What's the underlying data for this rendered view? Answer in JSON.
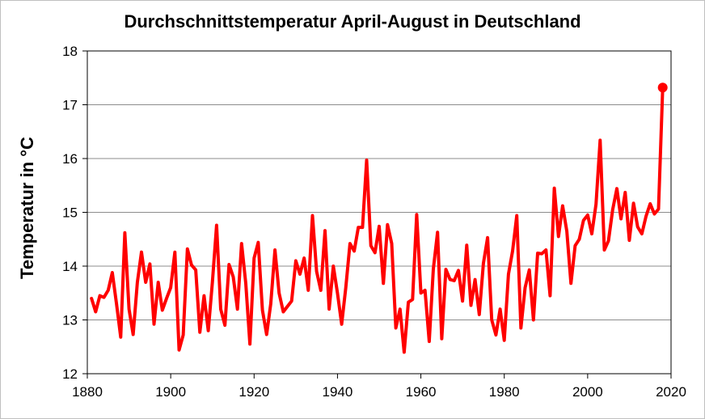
{
  "chart_data": {
    "type": "line",
    "title": "Durchschnittstemperatur April-August in Deutschland",
    "xlabel": "",
    "ylabel": "Temperatur in °C",
    "xlim": [
      1880,
      2020
    ],
    "ylim": [
      12,
      18
    ],
    "x_ticks": [
      "1880",
      "1900",
      "1920",
      "1940",
      "1960",
      "1980",
      "2000",
      "2020"
    ],
    "y_ticks": [
      "12",
      "13",
      "14",
      "15",
      "16",
      "17",
      "18"
    ],
    "grid": "horizontal",
    "legend": "none",
    "line_color": "#ff0000",
    "marker": "last point highlighted",
    "series": [
      {
        "x": [
          1881,
          1882,
          1883,
          1884,
          1885,
          1886,
          1887,
          1888,
          1889,
          1890,
          1891,
          1892,
          1893,
          1894,
          1895,
          1896,
          1897,
          1898,
          1899,
          1900,
          1901,
          1902,
          1903,
          1904,
          1905,
          1906,
          1907,
          1908,
          1909,
          1910,
          1911,
          1912,
          1913,
          1914,
          1915,
          1916,
          1917,
          1918,
          1919,
          1920,
          1921,
          1922,
          1923,
          1924,
          1925,
          1926,
          1927,
          1928,
          1929,
          1930,
          1931,
          1932,
          1933,
          1934,
          1935,
          1936,
          1937,
          1938,
          1939,
          1940,
          1941,
          1942,
          1943,
          1944,
          1945,
          1946,
          1947,
          1948,
          1949,
          1950,
          1951,
          1952,
          1953,
          1954,
          1955,
          1956,
          1957,
          1958,
          1959,
          1960,
          1961,
          1962,
          1963,
          1964,
          1965,
          1966,
          1967,
          1968,
          1969,
          1970,
          1971,
          1972,
          1973,
          1974,
          1975,
          1976,
          1977,
          1978,
          1979,
          1980,
          1981,
          1982,
          1983,
          1984,
          1985,
          1986,
          1987,
          1988,
          1989,
          1990,
          1991,
          1992,
          1993,
          1994,
          1995,
          1996,
          1997,
          1998,
          1999,
          2000,
          2001,
          2002,
          2003,
          2004,
          2005,
          2006,
          2007,
          2008,
          2009,
          2010,
          2011,
          2012,
          2013,
          2014,
          2015,
          2016,
          2017,
          2018
        ],
        "values": [
          13.4,
          13.15,
          13.45,
          13.42,
          13.55,
          13.88,
          13.3,
          12.68,
          14.62,
          13.2,
          12.73,
          13.7,
          14.26,
          13.7,
          14.04,
          12.92,
          13.7,
          13.18,
          13.4,
          13.6,
          14.26,
          12.44,
          12.72,
          14.32,
          14.02,
          13.93,
          12.77,
          13.45,
          12.8,
          13.7,
          14.76,
          13.2,
          12.9,
          14.03,
          13.8,
          13.2,
          14.42,
          13.68,
          12.55,
          14.15,
          14.44,
          13.18,
          12.73,
          13.3,
          14.3,
          13.5,
          13.15,
          13.25,
          13.35,
          14.1,
          13.85,
          14.15,
          13.55,
          14.94,
          13.9,
          13.55,
          14.66,
          13.2,
          14.0,
          13.5,
          12.92,
          13.6,
          14.42,
          14.28,
          14.72,
          14.72,
          15.97,
          14.38,
          14.25,
          14.74,
          13.68,
          14.77,
          14.42,
          12.85,
          13.2,
          12.4,
          13.33,
          13.38,
          14.96,
          13.5,
          13.55,
          12.6,
          13.95,
          14.63,
          12.65,
          13.94,
          13.75,
          13.73,
          13.92,
          13.35,
          14.39,
          13.27,
          13.75,
          13.1,
          14.05,
          14.53,
          13.0,
          12.72,
          13.2,
          12.62,
          13.85,
          14.28,
          14.94,
          12.85,
          13.6,
          13.93,
          13.0,
          14.24,
          14.23,
          14.3,
          13.45,
          15.45,
          14.55,
          15.12,
          14.65,
          13.68,
          14.38,
          14.5,
          14.85,
          14.95,
          14.6,
          15.15,
          16.34,
          14.3,
          14.47,
          15.05,
          15.44,
          14.88,
          15.37,
          14.48,
          15.17,
          14.73,
          14.6,
          14.93,
          15.16,
          14.97,
          15.06,
          17.32
        ]
      }
    ]
  }
}
